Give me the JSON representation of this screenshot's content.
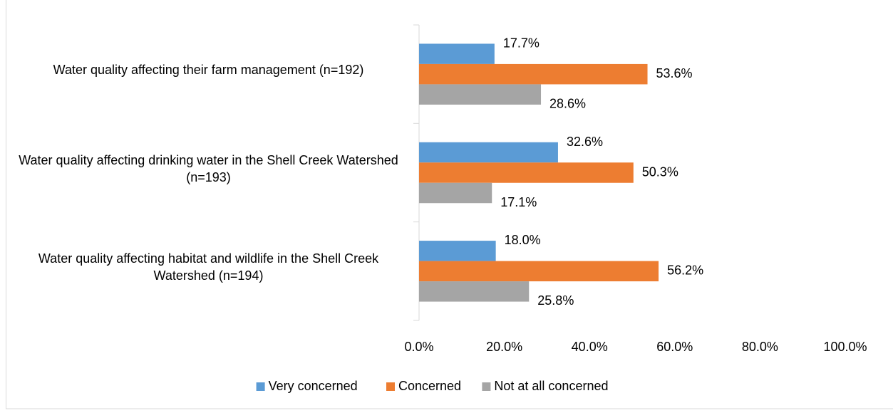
{
  "chart_data": {
    "type": "hbar",
    "categories": [
      "Water quality affecting their farm management (n=192)",
      "Water quality affecting drinking water in the Shell Creek Watershed (n=193)",
      "Water quality affecting habitat and wildlife in the Shell Creek Watershed (n=194)"
    ],
    "series": [
      {
        "name": "Very concerned",
        "color": "#5b9bd5",
        "values": [
          17.7,
          32.6,
          18.0
        ],
        "value_labels": [
          "17.7%",
          "32.6%",
          "18.0%"
        ]
      },
      {
        "name": "Concerned",
        "color": "#ed7d31",
        "values": [
          53.6,
          50.3,
          56.2
        ],
        "value_labels": [
          "53.6%",
          "50.3%",
          "56.2%"
        ]
      },
      {
        "name": "Not at all concerned",
        "color": "#a5a5a5",
        "values": [
          28.6,
          17.1,
          25.8
        ],
        "value_labels": [
          "28.6%",
          "17.1%",
          "25.8%"
        ]
      }
    ],
    "xlim": [
      0,
      100
    ],
    "xticks": [
      {
        "value": 0,
        "label": "0.0%"
      },
      {
        "value": 20,
        "label": "20.0%"
      },
      {
        "value": 40,
        "label": "40.0%"
      },
      {
        "value": 60,
        "label": "60.0%"
      },
      {
        "value": 80,
        "label": "80.0%"
      },
      {
        "value": 100,
        "label": "100.0%"
      }
    ],
    "legend": "bottom"
  }
}
